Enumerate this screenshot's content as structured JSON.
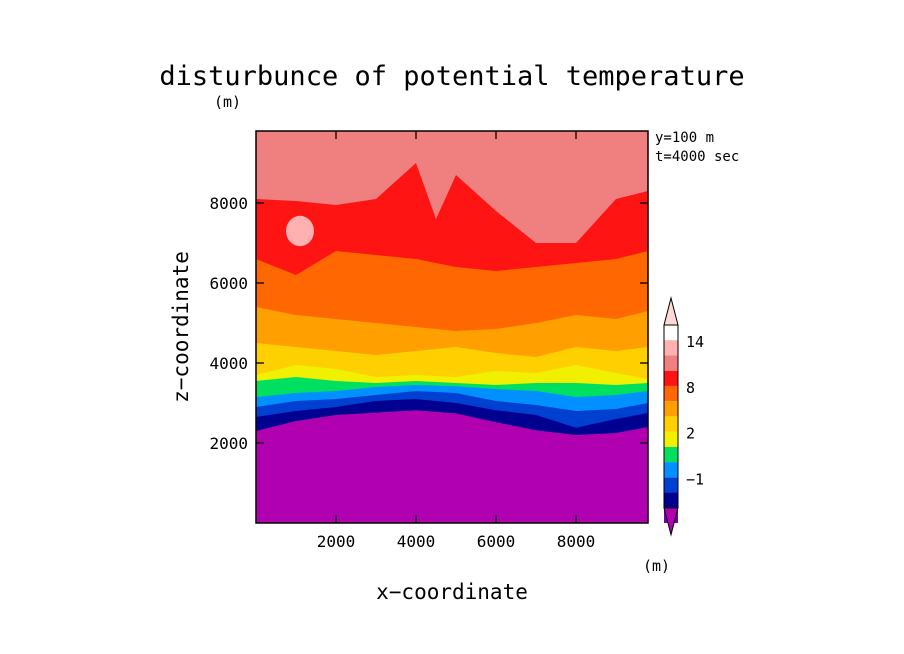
{
  "chart_data": {
    "type": "heatmap",
    "title": "disturbunce of potential temperature",
    "unit_label": "(m)",
    "xlabel": "x−coordinate",
    "ylabel": "z−coordinate",
    "info_lines": [
      "y=100 m",
      "t=4000 sec"
    ],
    "xlim": [
      0,
      9800
    ],
    "ylim": [
      0,
      9800
    ],
    "xticks": [
      2000,
      4000,
      6000,
      8000
    ],
    "yticks": [
      2000,
      4000,
      6000,
      8000
    ],
    "tick_labels_x": [
      "2000",
      "4000",
      "6000",
      "8000"
    ],
    "tick_labels_y": [
      "2000",
      "4000",
      "6000",
      "8000"
    ],
    "colorbar": {
      "unit": "(m)",
      "tick_labels": [
        "14",
        "8",
        "2",
        "−1"
      ],
      "tick_values": [
        14,
        8,
        2,
        -1
      ],
      "levels": [
        -4,
        -3,
        -2,
        -1,
        0,
        1,
        2,
        4,
        6,
        8,
        10,
        12,
        14,
        16,
        18
      ],
      "colors": [
        "#b000b0",
        "#7000b0",
        "#000090",
        "#0040d0",
        "#0090ff",
        "#00e060",
        "#f0f000",
        "#ffd000",
        "#ffa000",
        "#ff6800",
        "#ff1414",
        "#f08080",
        "#ffb0b0",
        "#ffd8d8"
      ]
    },
    "contour_boundaries": [
      {
        "level": -2,
        "z_at_x": [
          [
            0,
            2300
          ],
          [
            1000,
            2550
          ],
          [
            2000,
            2700
          ],
          [
            3000,
            2760
          ],
          [
            4000,
            2820
          ],
          [
            5000,
            2740
          ],
          [
            6000,
            2520
          ],
          [
            7000,
            2320
          ],
          [
            8000,
            2200
          ],
          [
            9000,
            2250
          ],
          [
            9800,
            2400
          ]
        ]
      },
      {
        "level": -1,
        "z_at_x": [
          [
            0,
            2650
          ],
          [
            1000,
            2800
          ],
          [
            2000,
            2900
          ],
          [
            3000,
            3050
          ],
          [
            4000,
            3100
          ],
          [
            5000,
            3000
          ],
          [
            6000,
            2820
          ],
          [
            7000,
            2700
          ],
          [
            8000,
            2380
          ],
          [
            9000,
            2600
          ],
          [
            9800,
            2750
          ]
        ]
      },
      {
        "level": 0,
        "z_at_x": [
          [
            0,
            2900
          ],
          [
            1000,
            3050
          ],
          [
            2000,
            3100
          ],
          [
            3000,
            3200
          ],
          [
            4000,
            3300
          ],
          [
            5000,
            3250
          ],
          [
            6000,
            3050
          ],
          [
            7000,
            2950
          ],
          [
            8000,
            2800
          ],
          [
            9000,
            2850
          ],
          [
            9800,
            3000
          ]
        ]
      },
      {
        "level": 1,
        "z_at_x": [
          [
            0,
            3150
          ],
          [
            1000,
            3250
          ],
          [
            2000,
            3300
          ],
          [
            3000,
            3400
          ],
          [
            4000,
            3450
          ],
          [
            5000,
            3420
          ],
          [
            6000,
            3350
          ],
          [
            7000,
            3300
          ],
          [
            8000,
            3150
          ],
          [
            9000,
            3200
          ],
          [
            9800,
            3300
          ]
        ]
      },
      {
        "level": 2,
        "z_at_x": [
          [
            0,
            3550
          ],
          [
            1000,
            3650
          ],
          [
            2000,
            3550
          ],
          [
            3000,
            3500
          ],
          [
            4000,
            3550
          ],
          [
            5000,
            3500
          ],
          [
            6000,
            3450
          ],
          [
            7000,
            3500
          ],
          [
            8000,
            3500
          ],
          [
            9000,
            3450
          ],
          [
            9800,
            3500
          ]
        ]
      },
      {
        "level": 4,
        "z_at_x": [
          [
            0,
            3700
          ],
          [
            1000,
            3950
          ],
          [
            2000,
            3850
          ],
          [
            3000,
            3650
          ],
          [
            4000,
            3700
          ],
          [
            5000,
            3650
          ],
          [
            6000,
            3800
          ],
          [
            7000,
            3750
          ],
          [
            8000,
            3950
          ],
          [
            9000,
            3750
          ],
          [
            9800,
            3600
          ]
        ]
      },
      {
        "level": 6,
        "z_at_x": [
          [
            0,
            4500
          ],
          [
            1000,
            4400
          ],
          [
            2000,
            4300
          ],
          [
            3000,
            4200
          ],
          [
            4000,
            4300
          ],
          [
            5000,
            4400
          ],
          [
            6000,
            4250
          ],
          [
            7000,
            4150
          ],
          [
            8000,
            4400
          ],
          [
            9000,
            4300
          ],
          [
            9800,
            4400
          ]
        ]
      },
      {
        "level": 8,
        "z_at_x": [
          [
            0,
            5400
          ],
          [
            1000,
            5200
          ],
          [
            2000,
            5100
          ],
          [
            3000,
            5000
          ],
          [
            4000,
            4900
          ],
          [
            5000,
            4800
          ],
          [
            6000,
            4850
          ],
          [
            7000,
            5000
          ],
          [
            8000,
            5200
          ],
          [
            9000,
            5100
          ],
          [
            9800,
            5300
          ]
        ]
      },
      {
        "level": 10,
        "z_at_x": [
          [
            0,
            6600
          ],
          [
            1000,
            6200
          ],
          [
            2000,
            6800
          ],
          [
            3000,
            6700
          ],
          [
            4000,
            6600
          ],
          [
            5000,
            6400
          ],
          [
            6000,
            6300
          ],
          [
            7000,
            6400
          ],
          [
            8000,
            6500
          ],
          [
            9000,
            6600
          ],
          [
            9800,
            6800
          ]
        ]
      },
      {
        "level": 12,
        "z_at_x": [
          [
            0,
            8100
          ],
          [
            1000,
            8050
          ],
          [
            2000,
            7950
          ],
          [
            3000,
            8100
          ],
          [
            4000,
            9000
          ],
          [
            4500,
            7600
          ],
          [
            5000,
            8700
          ],
          [
            6000,
            7800
          ],
          [
            7000,
            7000
          ],
          [
            8000,
            7000
          ],
          [
            9000,
            8100
          ],
          [
            9800,
            8300
          ]
        ]
      }
    ],
    "highlight_blob": {
      "level": 12,
      "center": [
        1100,
        7300
      ],
      "radius": [
        350,
        380
      ]
    }
  }
}
